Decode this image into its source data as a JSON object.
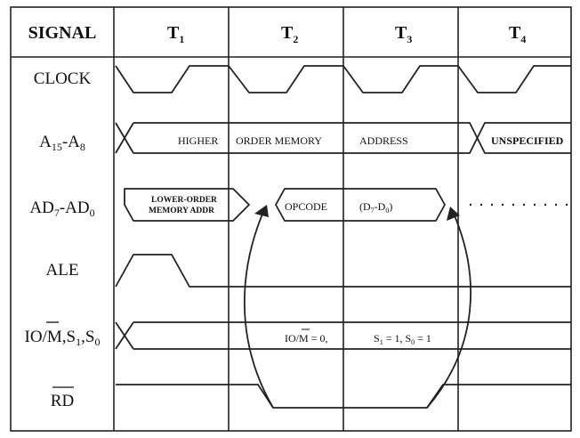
{
  "header": {
    "signal": "SIGNAL",
    "t1": "T",
    "t1_sub": "1",
    "t2": "T",
    "t2_sub": "2",
    "t3": "T",
    "t3_sub": "3",
    "t4": "T",
    "t4_sub": "4"
  },
  "rows": {
    "clock": "CLOCK",
    "addr_hi_a": "A",
    "addr_hi_a_sub": "15",
    "addr_hi_dash": "-A",
    "addr_hi_sub2": "8",
    "ad_a": "AD",
    "ad_sub1": "7",
    "ad_dash": "-AD",
    "ad_sub2": "0",
    "ale": "ALE",
    "iom_io": "IO/",
    "iom_m": "M",
    "iom_s": ",S",
    "iom_s1": "1",
    "iom_comma": ",S",
    "iom_s0": "0",
    "rd": "RD"
  },
  "annotations": {
    "higher": "HIGHER",
    "order_memory": "ORDER  MEMORY",
    "address": "ADDRESS",
    "unspecified": "UNSPECIFIED",
    "lower_order_1": "LOWER-ORDER",
    "lower_order_2": "MEMORY ADDR",
    "opcode": "OPCODE",
    "d_open": "(D",
    "d7": "7",
    "d_dash": "-D",
    "d0": "0",
    "d_close": ")",
    "iom_eq_io": "IO/",
    "iom_eq_m": "M",
    "iom_eq_val": " = 0,",
    "s1_s": "S",
    "s1_sub": "1",
    "s1_val": " = 1, S",
    "s0_sub": "0",
    "s0_val": " = 1"
  }
}
